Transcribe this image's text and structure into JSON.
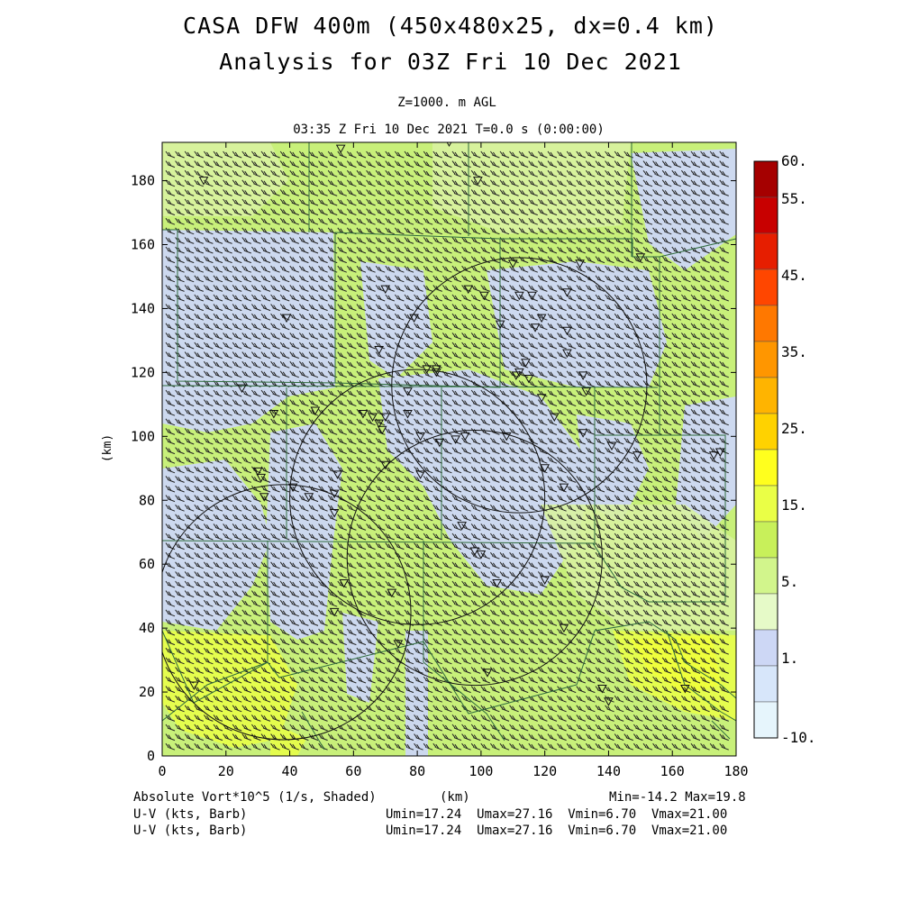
{
  "header": {
    "title": "CASA DFW 400m (450x480x25, dx=0.4 km)",
    "subtitle": "Analysis for 03Z Fri 10 Dec 2021",
    "level": "Z=1000. m AGL",
    "valid_time": "03:35 Z Fri 10 Dec 2021    T=0.0 s (0:00:00)"
  },
  "axes": {
    "x_ticks": [
      "0",
      "20",
      "40",
      "60",
      "80",
      "100",
      "120",
      "140",
      "160",
      "180"
    ],
    "y_ticks": [
      "0",
      "20",
      "40",
      "60",
      "80",
      "100",
      "120",
      "140",
      "160",
      "180"
    ],
    "x_label": "(km)",
    "y_label": "(km)",
    "x_range": [
      0,
      180
    ],
    "y_range": [
      0,
      192
    ]
  },
  "colorbar": {
    "labels": [
      "60.",
      "55.",
      "45.",
      "35.",
      "25.",
      "15.",
      "5.",
      "1.",
      "-10."
    ],
    "colors": [
      "#a50000",
      "#c80000",
      "#e61e00",
      "#ff4600",
      "#ff7800",
      "#ff9600",
      "#ffb400",
      "#ffd200",
      "#ffff1e",
      "#eaff46",
      "#c8f05a",
      "#d2f58c",
      "#e6fac8",
      "#cdd7f5",
      "#d7e6fa",
      "#e6f5fc"
    ]
  },
  "footer": {
    "field_label": "Absolute Vort*10^5 (1/s, Shaded)",
    "xunit": "(km)",
    "minmax": "Min=-14.2 Max=19.8",
    "uv_label_1": "U-V (kts, Barb)",
    "uv_label_2": "U-V (kts, Barb)",
    "uv_stats_1": "Umin=17.24  Umax=27.16  Vmin=6.70  Vmax=21.00",
    "uv_stats_2": "Umin=17.24  Umax=27.16  Vmin=6.70  Vmax=21.00"
  },
  "map": {
    "radar_rings": [
      {
        "x": 80,
        "y": 81,
        "r": 40
      },
      {
        "x": 98,
        "y": 62,
        "r": 40
      },
      {
        "x": 112,
        "y": 116,
        "r": 40
      },
      {
        "x": 38,
        "y": 45,
        "r": 40
      }
    ]
  }
}
